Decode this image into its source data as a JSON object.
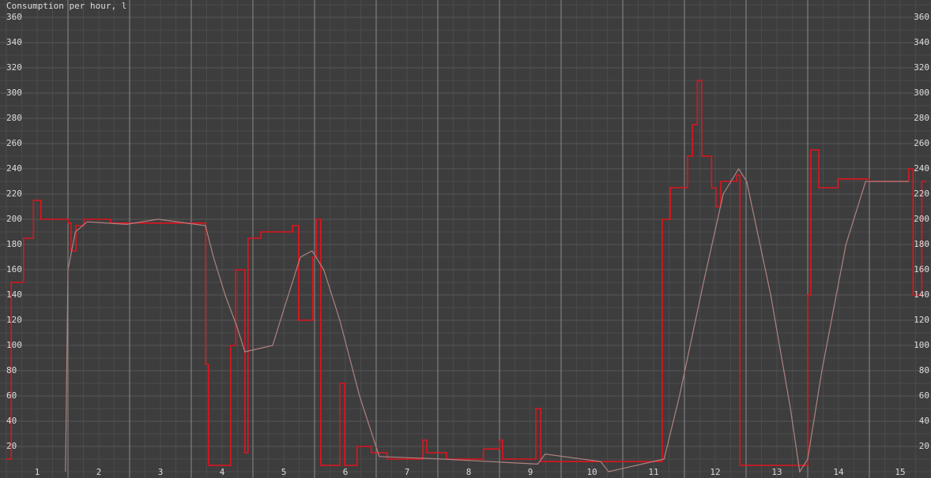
{
  "chart_data": {
    "type": "line",
    "title": "Consumption per hour, l",
    "categories": [
      "1",
      "2",
      "3",
      "4",
      "5",
      "6",
      "7",
      "8",
      "9",
      "10",
      "11",
      "12",
      "13",
      "14",
      "15"
    ],
    "xlim": [
      0,
      15
    ],
    "ylim": [
      0,
      360
    ],
    "yticks": [
      20,
      40,
      60,
      80,
      100,
      120,
      140,
      160,
      180,
      200,
      220,
      240,
      260,
      280,
      300,
      320,
      340,
      360
    ],
    "grid": true,
    "series": [
      {
        "color": "#e0141e",
        "step": true,
        "x": [
          0,
          0.08,
          0.28,
          0.44,
          0.56,
          1,
          1.05,
          1.13,
          1.26,
          1.69,
          3.23,
          3.28,
          3.64,
          3.72,
          3.87,
          3.92,
          4.13,
          4.64,
          4.74,
          4.97,
          5.03,
          5.1,
          5.41,
          5.49,
          5.69,
          5.92,
          6.18,
          6.76,
          6.82,
          7.14,
          7.74,
          8,
          8.05,
          8.59,
          8.67,
          10.64,
          10.77,
          11.05,
          11.13,
          11.21,
          11.28,
          11.44,
          11.51,
          11.59,
          11.85,
          11.9,
          13,
          13.05,
          13.18,
          13.49,
          14,
          14.64,
          14.71,
          14.85,
          14.92
        ],
        "values": [
          10,
          150,
          185,
          215,
          200,
          197,
          175,
          195,
          200,
          197,
          85,
          5,
          100,
          160,
          15,
          185,
          190,
          195,
          120,
          170,
          200,
          5,
          70,
          5,
          20,
          15,
          10,
          25,
          15,
          10,
          18,
          25,
          10,
          50,
          8,
          200,
          225,
          250,
          275,
          310,
          250,
          225,
          210,
          230,
          235,
          5,
          140,
          255,
          225,
          232,
          230,
          240,
          140,
          230,
          230
        ]
      },
      {
        "color": "#b08282",
        "step": false,
        "x": [
          0.96,
          1,
          1.12,
          1.31,
          1.95,
          2.46,
          3.23,
          3.36,
          3.55,
          3.74,
          3.87,
          4.32,
          4.51,
          4.77,
          4.96,
          5.15,
          5.41,
          5.73,
          6.05,
          7.08,
          7.85,
          8.62,
          8.74,
          9.64,
          9.77,
          10.67,
          10.92,
          11.31,
          11.63,
          11.88,
          12.01,
          12.4,
          12.72,
          12.87,
          13,
          13.23,
          13.62,
          13.94,
          14.64
        ],
        "values": [
          0,
          160,
          190,
          198,
          196,
          200,
          195,
          170,
          140,
          115,
          95,
          100,
          130,
          170,
          175,
          160,
          120,
          60,
          12,
          10,
          8,
          6,
          14,
          8,
          0,
          10,
          60,
          150,
          220,
          240,
          230,
          140,
          50,
          0,
          10,
          80,
          180,
          230,
          230
        ]
      }
    ]
  }
}
